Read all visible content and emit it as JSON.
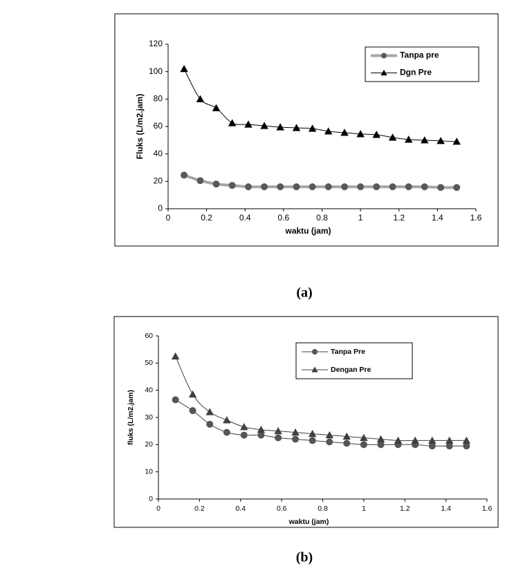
{
  "chart_data": [
    {
      "type": "line",
      "caption": "(a)",
      "x_label": "waktu (jam)",
      "y_label": "Fluks (L/m2.jam)",
      "x": [
        0.083,
        0.167,
        0.25,
        0.333,
        0.417,
        0.5,
        0.583,
        0.667,
        0.75,
        0.833,
        0.917,
        1.0,
        1.083,
        1.167,
        1.25,
        1.333,
        1.417,
        1.5
      ],
      "xlim": [
        0,
        1.6
      ],
      "xticks": [
        0,
        0.2,
        0.4,
        0.6,
        0.8,
        1,
        1.2,
        1.4,
        1.6
      ],
      "ylim": [
        0,
        120
      ],
      "yticks": [
        0,
        20,
        40,
        60,
        80,
        100,
        120
      ],
      "grid": false,
      "series": [
        {
          "name": "Tanpa pre",
          "color": "#a6a6a6",
          "marker": "circle",
          "marker_color": "#595959",
          "line_width": 4,
          "values": [
            24.5,
            20.5,
            18,
            17,
            16,
            16,
            16,
            16,
            16,
            16,
            16,
            16,
            16,
            16,
            16,
            16,
            15.5,
            15.5
          ]
        },
        {
          "name": "Dgn Pre",
          "color": "#000000",
          "marker": "triangle",
          "marker_color": "#000000",
          "line_width": 1,
          "values": [
            102,
            80,
            73.5,
            62.5,
            61.5,
            60.5,
            59.5,
            59,
            58.5,
            56.5,
            55.5,
            54.5,
            54,
            52,
            50.5,
            50,
            49.5,
            49
          ]
        }
      ]
    },
    {
      "type": "line",
      "caption": "(b)",
      "x_label": "waktu (jam)",
      "y_label": "fluks (L/m2.jam)",
      "x": [
        0.083,
        0.167,
        0.25,
        0.333,
        0.417,
        0.5,
        0.583,
        0.667,
        0.75,
        0.833,
        0.917,
        1.0,
        1.083,
        1.167,
        1.25,
        1.333,
        1.417,
        1.5
      ],
      "xlim": [
        0,
        1.6
      ],
      "xticks": [
        0,
        0.2,
        0.4,
        0.6,
        0.8,
        1,
        1.2,
        1.4,
        1.6
      ],
      "ylim": [
        0,
        60
      ],
      "yticks": [
        0,
        10,
        20,
        30,
        40,
        50,
        60
      ],
      "grid": false,
      "series": [
        {
          "name": "Tanpa Pre",
          "color": "#404040",
          "marker": "circle",
          "marker_color": "#555555",
          "line_width": 1,
          "values": [
            36.5,
            32.5,
            27.5,
            24.5,
            23.5,
            23.5,
            22.5,
            22,
            21.5,
            21,
            20.5,
            20,
            20,
            20,
            20,
            19.5,
            19.5,
            19.5
          ]
        },
        {
          "name": "Dengan Pre",
          "color": "#404040",
          "marker": "triangle",
          "marker_color": "#404040",
          "line_width": 1,
          "values": [
            52.5,
            38.5,
            32,
            29,
            26.5,
            25.5,
            25,
            24.5,
            24,
            23.5,
            23,
            22.5,
            22,
            21.5,
            21.5,
            21.5,
            21.5,
            21.5
          ]
        }
      ]
    }
  ]
}
